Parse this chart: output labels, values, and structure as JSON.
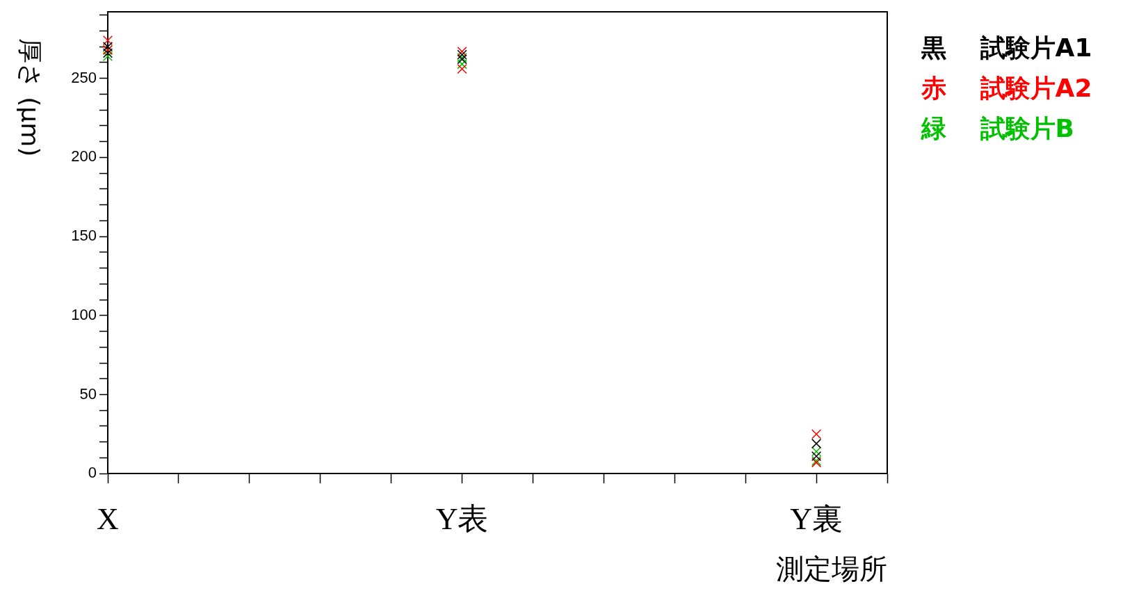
{
  "chart_data": {
    "type": "scatter",
    "ylabel": "厚さ (μm)",
    "xlabel": "測定場所",
    "ylim": [
      0,
      292
    ],
    "categories": [
      "X",
      null,
      null,
      null,
      null,
      "Y表",
      null,
      null,
      null,
      null,
      "Y裏",
      null
    ],
    "yticks": [
      0,
      {
        "value": 10,
        "label": null
      },
      {
        "value": 20,
        "label": null
      },
      {
        "value": 30,
        "label": null
      },
      {
        "value": 40,
        "label": null
      },
      50,
      {
        "value": 60,
        "label": null
      },
      {
        "value": 70,
        "label": null
      },
      {
        "value": 80,
        "label": null
      },
      {
        "value": 90,
        "label": null
      },
      100,
      {
        "value": 110,
        "label": null
      },
      {
        "value": 120,
        "label": null
      },
      {
        "value": 130,
        "label": null
      },
      {
        "value": 140,
        "label": null
      },
      150,
      {
        "value": 160,
        "label": null
      },
      {
        "value": 170,
        "label": null
      },
      {
        "value": 180,
        "label": null
      },
      {
        "value": 190,
        "label": null
      },
      200,
      {
        "value": 210,
        "label": null
      },
      {
        "value": 220,
        "label": null
      },
      {
        "value": 230,
        "label": null
      },
      {
        "value": 240,
        "label": null
      },
      250,
      {
        "value": 260,
        "label": null
      },
      {
        "value": 270,
        "label": null
      },
      {
        "value": 280,
        "label": null
      },
      {
        "value": 290,
        "label": null
      }
    ],
    "marker": "cross",
    "grid": false,
    "series": [
      {
        "name": "黒　試験片A1",
        "color": "#000000",
        "x": [
          "X",
          "X",
          "Y表",
          "Y表",
          "Y裏",
          "Y裏"
        ],
        "values": [
          270,
          266,
          265,
          262,
          19,
          11
        ]
      },
      {
        "name": "赤　試験片A2",
        "color": "#ff0000",
        "x": [
          "X",
          "X",
          "Y表",
          "Y表",
          "Y裏",
          "Y裏"
        ],
        "values": [
          274,
          268,
          267,
          256,
          25,
          7
        ]
      },
      {
        "name": "緑　試験片B",
        "color": "#00c000",
        "x": [
          "X",
          "X",
          "Y表",
          "Y表",
          "Y裏",
          "Y裏"
        ],
        "values": [
          268,
          264,
          263,
          259,
          14,
          8
        ]
      }
    ]
  }
}
